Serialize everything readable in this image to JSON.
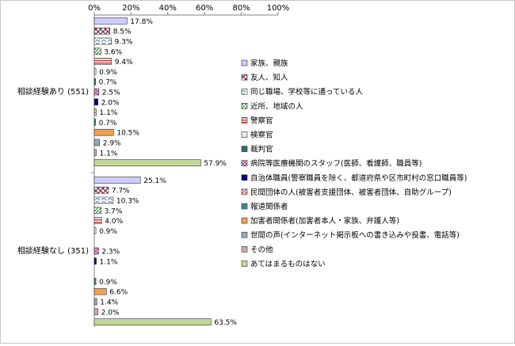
{
  "chart_data": {
    "type": "bar",
    "orientation": "horizontal",
    "x_axis": {
      "min": 0,
      "max": 100,
      "ticks": [
        0,
        20,
        40,
        60,
        80,
        100
      ],
      "tick_labels": [
        "0%",
        "20%",
        "40%",
        "60%",
        "80%",
        "100%"
      ],
      "position": "top"
    },
    "value_suffix": "%",
    "grid": false,
    "legend_position": "right",
    "groups": [
      {
        "label": "相談経験あり (551)",
        "values": [
          17.8,
          8.5,
          9.3,
          3.6,
          9.4,
          0.9,
          0.7,
          2.5,
          2.0,
          1.1,
          0.7,
          10.5,
          2.9,
          1.1,
          57.9
        ],
        "labels": [
          "17.8%",
          "8.5%",
          "9.3%",
          "3.6%",
          "9.4%",
          "0.9%",
          "0.7%",
          "2.5%",
          "2.0%",
          "1.1%",
          "0.7%",
          "10.5%",
          "2.9%",
          "1.1%",
          "57.9%"
        ]
      },
      {
        "label": "相談経験なし (351)",
        "values": [
          25.1,
          7.7,
          10.3,
          3.7,
          4.0,
          0.9,
          0.0,
          2.3,
          1.1,
          0.0,
          0.9,
          6.6,
          1.4,
          2.0,
          63.5
        ],
        "labels": [
          "25.1%",
          "7.7%",
          "10.3%",
          "3.7%",
          "4.0%",
          "0.9%",
          "",
          "2.3%",
          "1.1%",
          "",
          "0.9%",
          "6.6%",
          "1.4%",
          "2.0%",
          "63.5%"
        ]
      }
    ],
    "series": [
      {
        "name": "家族、親族",
        "color": "#ccccff",
        "pattern": "solid"
      },
      {
        "name": "友人、知人",
        "color": "#7b2d4f",
        "pattern": "diagonal-cross"
      },
      {
        "name": "同じ職場、学校等に通っている人",
        "color": "#4a7a9a",
        "pattern": "wave"
      },
      {
        "name": "近所、地域の人",
        "color": "#2e8b3a",
        "pattern": "diagonal"
      },
      {
        "name": "警察官",
        "color": "#c0302a",
        "pattern": "horizontal"
      },
      {
        "name": "検察官",
        "color": "#e8e8f8",
        "pattern": "solid"
      },
      {
        "name": "裁判官",
        "color": "#336677",
        "pattern": "solid"
      },
      {
        "name": "病院等医療機関のスタッフ(医師、看護師、職員等)",
        "color": "#a03090",
        "pattern": "diagonal-cross"
      },
      {
        "name": "自治体職員(警察職員を除く、都道府県や区市町村の窓口職員等)",
        "color": "#000080",
        "pattern": "solid"
      },
      {
        "name": "民間団体の人(被害者支援団体、被害者団体、自助グループ)",
        "color": "#cc2222",
        "pattern": "diagonal"
      },
      {
        "name": "報道関係者",
        "color": "#3a8a9a",
        "pattern": "solid"
      },
      {
        "name": "加害者関係者(加害者本人・家族、弁護人等)",
        "color": "#f0a050",
        "pattern": "solid"
      },
      {
        "name": "世間の声(インターネット掲示板への書き込みや投書、電話等)",
        "color": "#9aa8b8",
        "pattern": "solid"
      },
      {
        "name": "その他",
        "color": "#d8a8a0",
        "pattern": "solid"
      },
      {
        "name": "あてはまるものはない",
        "color": "#c4d79b",
        "pattern": "solid"
      }
    ]
  }
}
